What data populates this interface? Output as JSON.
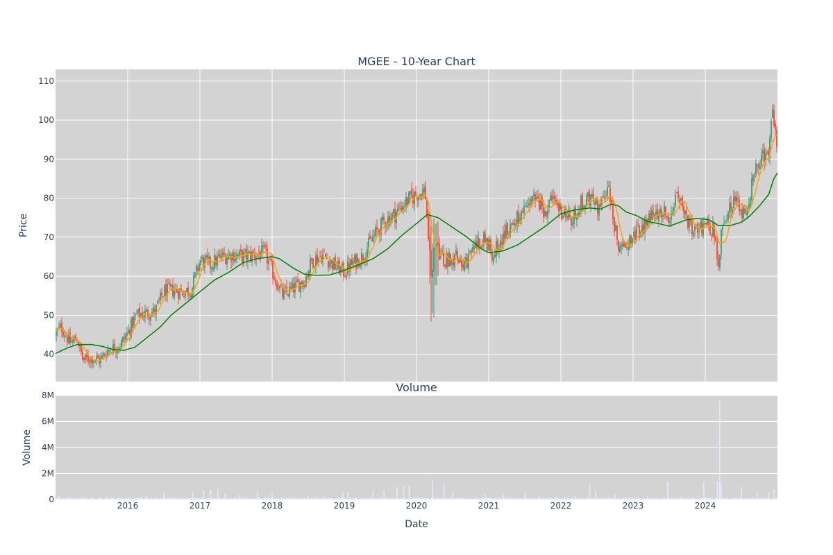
{
  "chart_data": [
    {
      "type": "candlestick",
      "title": "MGEE - 10-Year Chart",
      "ylabel": "Price",
      "ylim": [
        33,
        113
      ],
      "yticks": [
        40,
        50,
        60,
        70,
        80,
        90,
        100,
        110
      ],
      "xrange": [
        2015.0,
        2025.0
      ],
      "xticks": [
        "2016",
        "2017",
        "2018",
        "2019",
        "2020",
        "2021",
        "2022",
        "2023",
        "2024"
      ],
      "grid": true,
      "colors": {
        "up": "#3d9970",
        "down": "#ff4136",
        "ma_short": "#ffa500",
        "ma_long": "#008000",
        "plot_bg": "#d3d3d3"
      },
      "price_path": [
        [
          2015.0,
          45
        ],
        [
          2015.08,
          47
        ],
        [
          2015.2,
          43
        ],
        [
          2015.3,
          44
        ],
        [
          2015.38,
          38.5
        ],
        [
          2015.5,
          39
        ],
        [
          2015.62,
          38.5
        ],
        [
          2015.72,
          41
        ],
        [
          2015.9,
          42.5
        ],
        [
          2016.0,
          45.5
        ],
        [
          2016.12,
          50
        ],
        [
          2016.25,
          50.5
        ],
        [
          2016.38,
          51
        ],
        [
          2016.5,
          56
        ],
        [
          2016.62,
          56.5
        ],
        [
          2016.75,
          56
        ],
        [
          2016.88,
          56.5
        ],
        [
          2017.0,
          64
        ],
        [
          2017.15,
          63
        ],
        [
          2017.3,
          65
        ],
        [
          2017.45,
          65.5
        ],
        [
          2017.6,
          65
        ],
        [
          2017.75,
          65.5
        ],
        [
          2017.9,
          66
        ],
        [
          2018.05,
          59
        ],
        [
          2018.15,
          55
        ],
        [
          2018.3,
          57
        ],
        [
          2018.45,
          59
        ],
        [
          2018.55,
          64
        ],
        [
          2018.7,
          65.5
        ],
        [
          2018.85,
          63
        ],
        [
          2019.0,
          61
        ],
        [
          2019.1,
          63
        ],
        [
          2019.25,
          65
        ],
        [
          2019.4,
          70
        ],
        [
          2019.55,
          74
        ],
        [
          2019.7,
          76
        ],
        [
          2019.85,
          79
        ],
        [
          2020.0,
          81
        ],
        [
          2020.12,
          82
        ],
        [
          2020.2,
          60
        ],
        [
          2020.25,
          67
        ],
        [
          2020.4,
          64
        ],
        [
          2020.55,
          65
        ],
        [
          2020.7,
          63
        ],
        [
          2020.8,
          68
        ],
        [
          2020.95,
          70
        ],
        [
          2021.05,
          66
        ],
        [
          2021.2,
          70
        ],
        [
          2021.35,
          74
        ],
        [
          2021.5,
          76
        ],
        [
          2021.62,
          80
        ],
        [
          2021.75,
          77
        ],
        [
          2021.9,
          79
        ],
        [
          2022.05,
          76
        ],
        [
          2022.15,
          74
        ],
        [
          2022.25,
          78
        ],
        [
          2022.4,
          80
        ],
        [
          2022.55,
          77
        ],
        [
          2022.65,
          84
        ],
        [
          2022.75,
          72
        ],
        [
          2022.82,
          66
        ],
        [
          2022.95,
          70
        ],
        [
          2023.1,
          71
        ],
        [
          2023.25,
          76
        ],
        [
          2023.4,
          77
        ],
        [
          2023.5,
          76
        ],
        [
          2023.62,
          80
        ],
        [
          2023.75,
          74
        ],
        [
          2023.85,
          71
        ],
        [
          2024.0,
          74
        ],
        [
          2024.1,
          72
        ],
        [
          2024.18,
          64
        ],
        [
          2024.25,
          75
        ],
        [
          2024.4,
          80
        ],
        [
          2024.55,
          76
        ],
        [
          2024.68,
          86
        ],
        [
          2024.8,
          90
        ],
        [
          2024.88,
          93
        ],
        [
          2024.92,
          104
        ],
        [
          2024.97,
          99
        ],
        [
          2025.0,
          94
        ]
      ],
      "ma_long_path": [
        [
          2015.0,
          40.2
        ],
        [
          2015.15,
          41.5
        ],
        [
          2015.3,
          42.5
        ],
        [
          2015.5,
          42.5
        ],
        [
          2015.65,
          42
        ],
        [
          2015.8,
          41.2
        ],
        [
          2015.95,
          41
        ],
        [
          2016.1,
          41.8
        ],
        [
          2016.25,
          44
        ],
        [
          2016.45,
          47
        ],
        [
          2016.6,
          50
        ],
        [
          2016.8,
          53
        ],
        [
          2017.0,
          56
        ],
        [
          2017.2,
          59
        ],
        [
          2017.4,
          61
        ],
        [
          2017.6,
          63.5
        ],
        [
          2017.8,
          64.5
        ],
        [
          2018.0,
          65
        ],
        [
          2018.1,
          64.5
        ],
        [
          2018.3,
          62
        ],
        [
          2018.45,
          60.5
        ],
        [
          2018.6,
          60.2
        ],
        [
          2018.8,
          60.3
        ],
        [
          2019.0,
          61.5
        ],
        [
          2019.2,
          63
        ],
        [
          2019.4,
          64.5
        ],
        [
          2019.6,
          67
        ],
        [
          2019.8,
          70.5
        ],
        [
          2020.0,
          73.5
        ],
        [
          2020.15,
          75.8
        ],
        [
          2020.3,
          75
        ],
        [
          2020.5,
          72.5
        ],
        [
          2020.7,
          70
        ],
        [
          2020.9,
          67
        ],
        [
          2021.0,
          66
        ],
        [
          2021.2,
          66.5
        ],
        [
          2021.4,
          68
        ],
        [
          2021.6,
          70.5
        ],
        [
          2021.8,
          73
        ],
        [
          2022.0,
          76
        ],
        [
          2022.2,
          77
        ],
        [
          2022.4,
          77.5
        ],
        [
          2022.55,
          77.2
        ],
        [
          2022.7,
          78.5
        ],
        [
          2022.8,
          78
        ],
        [
          2022.9,
          76.5
        ],
        [
          2023.05,
          75.5
        ],
        [
          2023.2,
          74
        ],
        [
          2023.35,
          73.5
        ],
        [
          2023.5,
          72.8
        ],
        [
          2023.6,
          73.5
        ],
        [
          2023.75,
          74.5
        ],
        [
          2023.9,
          74.8
        ],
        [
          2024.05,
          74.5
        ],
        [
          2024.18,
          73
        ],
        [
          2024.35,
          73
        ],
        [
          2024.5,
          73.8
        ],
        [
          2024.62,
          75.5
        ],
        [
          2024.75,
          78
        ],
        [
          2024.88,
          81
        ],
        [
          2024.95,
          85
        ],
        [
          2025.0,
          86.5
        ]
      ]
    },
    {
      "type": "bar",
      "title": "Volume",
      "ylabel": "Volume",
      "xlabel": "Date",
      "ylim": [
        0,
        8000000
      ],
      "yticks": [
        "0",
        "2M",
        "4M",
        "6M",
        "8M"
      ],
      "xticks": [
        "2016",
        "2017",
        "2018",
        "2019",
        "2020",
        "2021",
        "2022",
        "2023",
        "2024"
      ],
      "bar_color": "#e6e6fa",
      "spikes": [
        [
          2015.05,
          300000
        ],
        [
          2015.6,
          200000
        ],
        [
          2016.25,
          300000
        ],
        [
          2016.5,
          600000
        ],
        [
          2016.9,
          550000
        ],
        [
          2017.05,
          700000
        ],
        [
          2017.15,
          750000
        ],
        [
          2017.25,
          800000
        ],
        [
          2017.35,
          450000
        ],
        [
          2017.55,
          400000
        ],
        [
          2017.8,
          600000
        ],
        [
          2018.0,
          500000
        ],
        [
          2018.5,
          300000
        ],
        [
          2018.98,
          600000
        ],
        [
          2019.05,
          600000
        ],
        [
          2019.4,
          700000
        ],
        [
          2019.55,
          750000
        ],
        [
          2019.73,
          1000000
        ],
        [
          2019.82,
          1000000
        ],
        [
          2019.9,
          1050000
        ],
        [
          2020.22,
          1450000
        ],
        [
          2020.38,
          1200000
        ],
        [
          2020.5,
          500000
        ],
        [
          2020.95,
          400000
        ],
        [
          2021.2,
          450000
        ],
        [
          2021.5,
          500000
        ],
        [
          2021.7,
          300000
        ],
        [
          2022.2,
          300000
        ],
        [
          2022.4,
          1200000
        ],
        [
          2022.48,
          650000
        ],
        [
          2022.75,
          400000
        ],
        [
          2023.2,
          300000
        ],
        [
          2023.48,
          1400000
        ],
        [
          2023.98,
          1350000
        ],
        [
          2024.17,
          1400000
        ],
        [
          2024.2,
          7600000
        ],
        [
          2024.22,
          1200000
        ],
        [
          2024.5,
          1000000
        ],
        [
          2024.72,
          600000
        ],
        [
          2024.88,
          600000
        ],
        [
          2024.95,
          800000
        ]
      ]
    }
  ]
}
